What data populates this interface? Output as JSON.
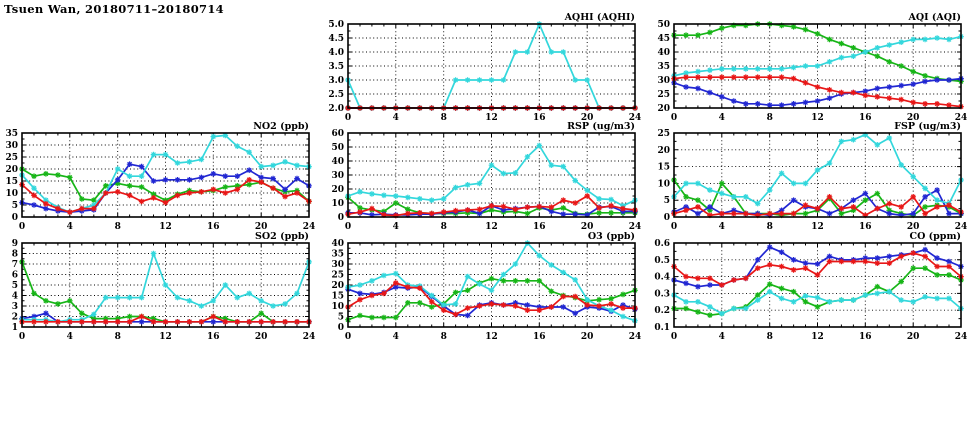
{
  "page_title": "Tsuen Wan, 20180711–20180714",
  "station": "Tsuen Wan",
  "date_range": "20180711–20180714",
  "colors": {
    "red": "#e81717",
    "green": "#17b517",
    "blue": "#2127d2",
    "cyan": "#33d7dc",
    "axis": "#000000",
    "background": "#ffffff"
  },
  "x_axis": {
    "min": 0,
    "max": 24,
    "major_step": 4,
    "minor_step": 1,
    "ticks": [
      0,
      4,
      8,
      12,
      16,
      20,
      24
    ]
  },
  "chart_data": [
    {
      "type": "line",
      "id": "aqhi",
      "title": "AQHI (AQHI)",
      "row": 0,
      "col": 1,
      "ylim": [
        2.0,
        5.0
      ],
      "ystep": 0.5,
      "ydecimals": 1,
      "grid": true,
      "series": [
        {
          "name": "day-green",
          "color": "green",
          "values": [
            2,
            2,
            2,
            2,
            2,
            2,
            2,
            2,
            2,
            2,
            2,
            2,
            2,
            2,
            2,
            2,
            2,
            2,
            2,
            2,
            2,
            2,
            2,
            2,
            2
          ]
        },
        {
          "name": "day-blue",
          "color": "blue",
          "values": [
            2,
            2,
            2,
            2,
            2,
            2,
            2,
            2,
            2,
            2,
            2,
            2,
            2,
            2,
            2,
            2,
            2,
            2,
            2,
            2,
            2,
            2,
            2,
            2,
            2
          ]
        },
        {
          "name": "day-cyan",
          "color": "cyan",
          "values": [
            3,
            2,
            2,
            2,
            2,
            2,
            2,
            2,
            2,
            3,
            3,
            3,
            3,
            3,
            4,
            4,
            5,
            4,
            4,
            3,
            3,
            2,
            2,
            2,
            2
          ]
        },
        {
          "name": "day-red",
          "color": "red",
          "values": [
            2,
            2,
            2,
            2,
            2,
            2,
            2,
            2,
            2,
            2,
            2,
            2,
            2,
            2,
            2,
            2,
            2,
            2,
            2,
            2,
            2,
            2,
            2,
            2,
            2
          ]
        }
      ]
    },
    {
      "type": "line",
      "id": "aqi",
      "title": "AQI (AQI)",
      "row": 0,
      "col": 2,
      "ylim": [
        20,
        50
      ],
      "ystep": 5,
      "ydecimals": 0,
      "grid": true,
      "series": [
        {
          "name": "day-green",
          "color": "green",
          "values": [
            46,
            46,
            46,
            47,
            48.5,
            49.5,
            49.5,
            50,
            50,
            49.5,
            49,
            48,
            46.5,
            44.5,
            43,
            41.5,
            40,
            38.5,
            36.5,
            35,
            33,
            31.5,
            30.5,
            30,
            29.5
          ]
        },
        {
          "name": "day-blue",
          "color": "blue",
          "values": [
            29,
            27.5,
            27,
            25.5,
            24,
            22.5,
            21.5,
            21.5,
            21,
            21,
            21.5,
            22,
            22.5,
            23.5,
            25,
            25.5,
            26,
            27,
            27.5,
            28,
            28.5,
            29.5,
            30,
            30,
            30.5
          ]
        },
        {
          "name": "day-cyan",
          "color": "cyan",
          "values": [
            31.5,
            32.5,
            33,
            33.5,
            34,
            34,
            34,
            34,
            34,
            34,
            34.5,
            35,
            35,
            36.5,
            38,
            38.5,
            40,
            41.5,
            42.5,
            43.5,
            44.5,
            44.5,
            45,
            44.5,
            45.5
          ]
        },
        {
          "name": "day-red",
          "color": "red",
          "values": [
            30.5,
            31,
            31,
            31,
            31,
            31,
            31,
            31,
            31,
            31,
            30.5,
            29,
            27.5,
            26.5,
            25.5,
            25.5,
            24.5,
            24,
            23.5,
            23,
            22,
            21.5,
            21.5,
            21,
            20.5
          ]
        }
      ]
    },
    {
      "type": "line",
      "id": "no2",
      "title": "NO2 (ppb)",
      "row": 1,
      "col": 0,
      "ylim": [
        0,
        35
      ],
      "ystep": 5,
      "ydecimals": 0,
      "grid": true,
      "series": [
        {
          "name": "day-green",
          "color": "green",
          "values": [
            20,
            17,
            18,
            17.5,
            16.5,
            7.5,
            7,
            13,
            14,
            13,
            12.5,
            9.5,
            7,
            9.5,
            11,
            10.5,
            11,
            12.5,
            13,
            13.5,
            14.5,
            12,
            10.5,
            11,
            6.5
          ]
        },
        {
          "name": "day-blue",
          "color": "blue",
          "values": [
            6,
            5,
            3.5,
            2.5,
            2,
            2.5,
            3,
            10,
            15.5,
            22,
            21,
            15,
            15.5,
            15.5,
            15.5,
            16.5,
            18,
            17,
            17,
            19.5,
            16.5,
            16,
            11.5,
            16,
            13
          ]
        },
        {
          "name": "day-cyan",
          "color": "cyan",
          "values": [
            17.5,
            12,
            7,
            4,
            2,
            3.5,
            5,
            10,
            20,
            17,
            17,
            26,
            26,
            22.5,
            23,
            24,
            33.5,
            34,
            29.5,
            27,
            21,
            21.5,
            23,
            21.5,
            21
          ]
        },
        {
          "name": "day-red",
          "color": "red",
          "values": [
            13.5,
            9,
            5.5,
            3.5,
            2,
            3.5,
            3.5,
            10,
            10.5,
            9,
            6.5,
            8,
            6,
            9,
            10,
            10.5,
            11.5,
            10,
            11.5,
            15.5,
            14.5,
            12,
            8.5,
            10,
            6.5
          ]
        }
      ]
    },
    {
      "type": "line",
      "id": "rsp",
      "title": "RSP (ug/m3)",
      "row": 1,
      "col": 1,
      "ylim": [
        0,
        60
      ],
      "ystep": 10,
      "ydecimals": 0,
      "grid": true,
      "series": [
        {
          "name": "day-green",
          "color": "green",
          "values": [
            14,
            6.5,
            5,
            4,
            10,
            5.5,
            3,
            2.5,
            2.5,
            2.5,
            3,
            2.5,
            5,
            3.5,
            4,
            2.5,
            6.5,
            5,
            6.5,
            2.5,
            2,
            3,
            3,
            3,
            3
          ]
        },
        {
          "name": "day-blue",
          "color": "blue",
          "values": [
            3,
            3,
            1.5,
            2,
            1.5,
            1.5,
            2,
            2,
            3,
            3.5,
            5,
            2.5,
            8,
            5,
            6,
            7,
            7.5,
            4,
            2,
            2,
            1.5,
            7,
            7.5,
            4,
            4
          ]
        },
        {
          "name": "day-cyan",
          "color": "cyan",
          "values": [
            15,
            18,
            16.5,
            15.5,
            15,
            14,
            13,
            12,
            13,
            21,
            23,
            24,
            37,
            31,
            31.5,
            43,
            51,
            37,
            36,
            26,
            19,
            13,
            12.5,
            8,
            12
          ]
        },
        {
          "name": "day-red",
          "color": "red",
          "values": [
            2,
            3.5,
            6,
            1.5,
            1,
            2.5,
            3,
            2.5,
            3.5,
            4.5,
            5,
            5.5,
            8,
            7.5,
            5.5,
            7,
            7.5,
            7,
            12,
            10,
            15,
            6.5,
            8,
            6,
            5
          ]
        }
      ]
    },
    {
      "type": "line",
      "id": "fsp",
      "title": "FSP (ug/m3)",
      "row": 1,
      "col": 2,
      "ylim": [
        0,
        25
      ],
      "ystep": 5,
      "ydecimals": 0,
      "grid": true,
      "series": [
        {
          "name": "day-green",
          "color": "green",
          "values": [
            11,
            6,
            5,
            2,
            10,
            6,
            1,
            1,
            1,
            0.5,
            1,
            1,
            2,
            5.5,
            1,
            2,
            5,
            7,
            2,
            1,
            0.5,
            3,
            3.5,
            3,
            1
          ]
        },
        {
          "name": "day-blue",
          "color": "blue",
          "values": [
            1.5,
            3,
            1,
            3,
            1,
            2,
            1,
            1,
            0.5,
            2,
            5,
            3,
            2.5,
            1,
            2.5,
            5,
            7,
            2.5,
            1,
            0.5,
            1,
            6,
            8,
            1,
            1
          ]
        },
        {
          "name": "day-cyan",
          "color": "cyan",
          "values": [
            6,
            10,
            10,
            8,
            7,
            6,
            6,
            4,
            8,
            13,
            10,
            10,
            14,
            16,
            22.5,
            23,
            24.5,
            21.5,
            23.5,
            15.5,
            12,
            8.5,
            5,
            4,
            11
          ]
        },
        {
          "name": "day-red",
          "color": "red",
          "values": [
            1,
            2,
            3,
            0.5,
            1,
            1,
            1,
            0.5,
            1,
            1,
            1,
            3.5,
            2.5,
            6,
            2.5,
            3,
            0.5,
            2.5,
            4,
            3,
            6,
            1,
            3,
            3.5,
            1.5
          ]
        }
      ]
    },
    {
      "type": "line",
      "id": "so2",
      "title": "SO2 (ppb)",
      "row": 2,
      "col": 0,
      "ylim": [
        1,
        9
      ],
      "ystep": 1,
      "ydecimals": 0,
      "grid": true,
      "series": [
        {
          "name": "day-green",
          "color": "green",
          "values": [
            7.2,
            4.2,
            3.5,
            3.2,
            3.5,
            2.3,
            1.8,
            1.8,
            1.8,
            2,
            2,
            1.8,
            1.5,
            1.5,
            1.5,
            1.5,
            2,
            1.8,
            1.5,
            1.5,
            2.3,
            1.5,
            1.5,
            1.5,
            1.5
          ]
        },
        {
          "name": "day-blue",
          "color": "blue",
          "values": [
            1.8,
            2,
            2.3,
            1.5,
            1.5,
            1.5,
            1.5,
            1.5,
            1.5,
            1.5,
            1.5,
            1.5,
            1.5,
            1.5,
            1.5,
            1.5,
            1.5,
            1.5,
            1.5,
            1.5,
            1.5,
            1.5,
            1.5,
            1.5,
            1.5
          ]
        },
        {
          "name": "day-cyan",
          "color": "cyan",
          "values": [
            1.7,
            1.7,
            1.7,
            1.5,
            1.7,
            1.7,
            2.2,
            3.8,
            3.8,
            3.8,
            3.8,
            8,
            5,
            3.8,
            3.5,
            3,
            3.5,
            5,
            3.8,
            4.2,
            3.5,
            3,
            3.2,
            4.2,
            7.2
          ]
        },
        {
          "name": "day-red",
          "color": "red",
          "values": [
            1.5,
            1.5,
            1.5,
            1.5,
            1.5,
            1.5,
            1.5,
            1.5,
            1.5,
            1.5,
            2,
            1.5,
            1.5,
            1.5,
            1.5,
            1.5,
            2,
            1.5,
            1.5,
            1.5,
            1.5,
            1.5,
            1.5,
            1.5,
            1.5
          ]
        }
      ]
    },
    {
      "type": "line",
      "id": "o3",
      "title": "O3 (ppb)",
      "row": 2,
      "col": 1,
      "ylim": [
        0,
        40
      ],
      "ystep": 5,
      "ydecimals": 0,
      "grid": true,
      "series": [
        {
          "name": "day-green",
          "color": "green",
          "values": [
            3.5,
            5.5,
            4.5,
            4.5,
            4.5,
            11.5,
            11.5,
            9.5,
            11,
            16.5,
            17.5,
            21,
            23,
            22,
            22,
            22,
            22,
            17,
            15,
            14,
            12.5,
            13,
            13.5,
            15.5,
            17.5
          ]
        },
        {
          "name": "day-blue",
          "color": "blue",
          "values": [
            18,
            16,
            15.5,
            16.5,
            19,
            18.5,
            19,
            14.5,
            10,
            6,
            5.5,
            10.5,
            11.5,
            10.5,
            11.5,
            10.5,
            9.5,
            9.5,
            9.5,
            6.5,
            9.5,
            9,
            7.5,
            10.5,
            8.5
          ]
        },
        {
          "name": "day-cyan",
          "color": "cyan",
          "values": [
            19,
            20,
            22,
            24.5,
            25.5,
            20,
            19.5,
            15,
            10.5,
            11,
            24,
            20.5,
            17.5,
            25,
            30,
            40,
            34,
            29.5,
            26,
            22.5,
            13,
            10,
            8,
            5,
            3
          ]
        },
        {
          "name": "day-red",
          "color": "red",
          "values": [
            9.5,
            13,
            15,
            16,
            21,
            19,
            18.5,
            12,
            8,
            6,
            9,
            10,
            11,
            10.5,
            10,
            8,
            8,
            9.5,
            14.5,
            14.5,
            10.5,
            10,
            11,
            9,
            9
          ]
        }
      ]
    },
    {
      "type": "line",
      "id": "co",
      "title": "CO (ppm)",
      "row": 2,
      "col": 2,
      "ylim": [
        0.1,
        0.6
      ],
      "ystep": 0.1,
      "ydecimals": 1,
      "grid": true,
      "series": [
        {
          "name": "day-green",
          "color": "green",
          "values": [
            0.21,
            0.21,
            0.19,
            0.17,
            0.18,
            0.21,
            0.22,
            0.29,
            0.355,
            0.33,
            0.31,
            0.25,
            0.22,
            0.25,
            0.26,
            0.26,
            0.29,
            0.34,
            0.31,
            0.37,
            0.45,
            0.45,
            0.41,
            0.41,
            0.38
          ]
        },
        {
          "name": "day-blue",
          "color": "blue",
          "values": [
            0.38,
            0.36,
            0.34,
            0.35,
            0.35,
            0.38,
            0.39,
            0.5,
            0.575,
            0.545,
            0.5,
            0.48,
            0.475,
            0.52,
            0.5,
            0.5,
            0.51,
            0.51,
            0.52,
            0.53,
            0.54,
            0.56,
            0.51,
            0.49,
            0.46
          ]
        },
        {
          "name": "day-cyan",
          "color": "cyan",
          "values": [
            0.29,
            0.25,
            0.25,
            0.22,
            0.18,
            0.21,
            0.21,
            0.26,
            0.31,
            0.27,
            0.25,
            0.285,
            0.275,
            0.25,
            0.26,
            0.26,
            0.29,
            0.3,
            0.31,
            0.26,
            0.25,
            0.28,
            0.27,
            0.27,
            0.21
          ]
        },
        {
          "name": "day-red",
          "color": "red",
          "values": [
            0.46,
            0.4,
            0.39,
            0.39,
            0.35,
            0.38,
            0.39,
            0.45,
            0.47,
            0.46,
            0.44,
            0.45,
            0.41,
            0.49,
            0.49,
            0.49,
            0.49,
            0.48,
            0.48,
            0.52,
            0.54,
            0.52,
            0.46,
            0.46,
            0.4
          ]
        }
      ]
    }
  ]
}
